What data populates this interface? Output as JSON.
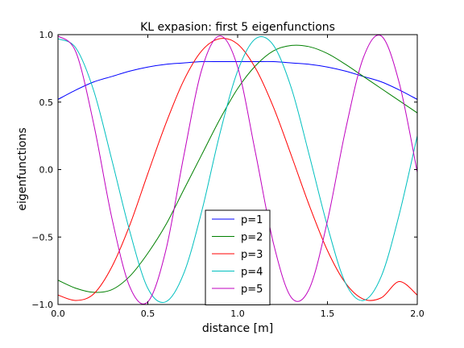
{
  "chart_data": {
    "type": "line",
    "title": "KL expasion: first 5 eigenfunctions",
    "xlabel": "distance [m]",
    "ylabel": "eigenfunctions",
    "xlim": [
      0.0,
      2.0
    ],
    "ylim": [
      -1.0,
      1.0
    ],
    "x_ticks": [
      0.0,
      0.5,
      1.0,
      1.5,
      2.0
    ],
    "x_tick_labels": [
      "0.0",
      "0.5",
      "1.0",
      "1.5",
      "2.0"
    ],
    "y_ticks": [
      -1.0,
      -0.5,
      0.0,
      0.5,
      1.0
    ],
    "y_tick_labels": [
      "−1.0",
      "−0.5",
      "0.0",
      "0.5",
      "1.0"
    ],
    "grid": false,
    "legend": {
      "placement": "lower-center"
    },
    "x": [
      0.0,
      0.1,
      0.2,
      0.3,
      0.4,
      0.5,
      0.6,
      0.7,
      0.8,
      0.9,
      1.0,
      1.1,
      1.2,
      1.3,
      1.4,
      1.5,
      1.6,
      1.7,
      1.8,
      1.9,
      2.0
    ],
    "series": [
      {
        "name": "p=1",
        "color": "#0000ff",
        "values": [
          0.52,
          0.59,
          0.65,
          0.69,
          0.73,
          0.76,
          0.78,
          0.79,
          0.8,
          0.8,
          0.8,
          0.8,
          0.8,
          0.79,
          0.78,
          0.76,
          0.73,
          0.69,
          0.65,
          0.59,
          0.52
        ]
      },
      {
        "name": "p=2",
        "color": "#008000",
        "values": [
          -0.82,
          -0.88,
          -0.91,
          -0.89,
          -0.79,
          -0.62,
          -0.41,
          -0.15,
          0.11,
          0.37,
          0.6,
          0.77,
          0.88,
          0.92,
          0.91,
          0.86,
          0.78,
          0.69,
          0.6,
          0.51,
          0.42
        ]
      },
      {
        "name": "p=3",
        "color": "#ff0000",
        "values": [
          -0.93,
          -0.97,
          -0.92,
          -0.72,
          -0.41,
          -0.03,
          0.34,
          0.66,
          0.88,
          0.97,
          0.93,
          0.75,
          0.46,
          0.1,
          -0.27,
          -0.6,
          -0.84,
          -0.96,
          -0.95,
          -0.83,
          -0.93
        ]
      },
      {
        "name": "p=4",
        "color": "#00bfbf",
        "values": [
          0.97,
          0.9,
          0.58,
          0.07,
          -0.46,
          -0.88,
          -0.98,
          -0.77,
          -0.31,
          0.26,
          0.73,
          0.97,
          0.92,
          0.6,
          0.1,
          -0.42,
          -0.84,
          -0.97,
          -0.79,
          -0.33,
          0.25
        ]
      },
      {
        "name": "p=5",
        "color": "#bf00bf",
        "values": [
          0.99,
          0.87,
          0.33,
          -0.36,
          -0.87,
          -0.98,
          -0.6,
          0.1,
          0.74,
          0.99,
          0.76,
          0.12,
          -0.55,
          -0.95,
          -0.88,
          -0.38,
          0.29,
          0.83,
          0.99,
          0.64,
          -0.02
        ]
      }
    ]
  }
}
